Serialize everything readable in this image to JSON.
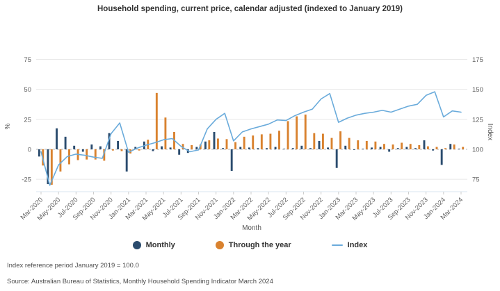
{
  "title": "Household spending, current price, calendar adjusted (indexed to January 2019)",
  "legend": {
    "items": [
      {
        "label": "Monthly",
        "color": "#2b4c6e",
        "marker": "circle"
      },
      {
        "label": "Through the year",
        "color": "#d9822f",
        "marker": "circle"
      },
      {
        "label": "Index",
        "color": "#6aabdb",
        "marker": "line"
      }
    ]
  },
  "footnotes": {
    "reference": "Index reference period January 2019 = 100.0",
    "source": "Source: Australian Bureau of Statistics, Monthly Household Spending Indicator March 2024"
  },
  "chart_data": {
    "type": "bar",
    "title": "Household spending, current price, calendar adjusted (indexed to January 2019)",
    "xlabel": "Month",
    "ylabel_left": "%",
    "ylabel_right": "Index",
    "yticks_left": [
      75,
      50,
      25,
      0,
      -25
    ],
    "yticks_right": [
      175,
      150,
      125,
      100,
      75
    ],
    "ylim_left": [
      -35,
      78
    ],
    "ylim_right": [
      65,
      178
    ],
    "grid": true,
    "zero_line_dashed": true,
    "legend_position": "bottom",
    "tick_every": 2,
    "months": [
      "Mar-2020",
      "Apr-2020",
      "May-2020",
      "Jun-2020",
      "Jul-2020",
      "Aug-2020",
      "Sep-2020",
      "Oct-2020",
      "Nov-2020",
      "Dec-2020",
      "Jan-2021",
      "Feb-2021",
      "Mar-2021",
      "Apr-2021",
      "May-2021",
      "Jun-2021",
      "Jul-2021",
      "Aug-2021",
      "Sep-2021",
      "Oct-2021",
      "Nov-2021",
      "Dec-2021",
      "Jan-2022",
      "Feb-2022",
      "Mar-2022",
      "Apr-2022",
      "May-2022",
      "Jun-2022",
      "Jul-2022",
      "Aug-2022",
      "Sep-2022",
      "Oct-2022",
      "Nov-2022",
      "Dec-2022",
      "Jan-2023",
      "Feb-2023",
      "Mar-2023",
      "Apr-2023",
      "May-2023",
      "Jun-2023",
      "Jul-2023",
      "Aug-2023",
      "Sep-2023",
      "Oct-2023",
      "Nov-2023",
      "Dec-2023",
      "Jan-2024",
      "Feb-2024",
      "Mar-2024"
    ],
    "series": [
      {
        "name": "Monthly",
        "kind": "bar",
        "axis": "left",
        "color": "#2b4c6e",
        "values": [
          -6,
          -29,
          17.5,
          10.5,
          3,
          -2,
          4,
          2.5,
          13.5,
          7,
          -18.5,
          2,
          6.5,
          -1.5,
          2.5,
          1.5,
          -4.5,
          -3,
          2,
          6.5,
          14.5,
          1,
          -18,
          2,
          1.5,
          1,
          1,
          2,
          0.5,
          1,
          3,
          1,
          7,
          1.5,
          -15.5,
          3,
          -0.5,
          0.5,
          1.5,
          2,
          -2,
          1,
          2,
          1,
          7.5,
          -1,
          -13,
          4.5,
          0.5
        ]
      },
      {
        "name": "Through the year",
        "kind": "bar",
        "axis": "left",
        "color": "#d9822f",
        "values": [
          -13.5,
          -29.5,
          -18.5,
          -12.5,
          -9,
          -8.5,
          -8.5,
          -9.5,
          -1,
          -1.5,
          -3.5,
          -1,
          8,
          47,
          26.5,
          14.5,
          4.5,
          3.5,
          4,
          7.5,
          9,
          8.5,
          6,
          10.5,
          11.5,
          12.5,
          13,
          15.5,
          23.5,
          27.5,
          29,
          13.5,
          13,
          9.5,
          15,
          9.5,
          7.5,
          7,
          6.5,
          4.5,
          4,
          5.5,
          4.5,
          3.5,
          2.5,
          2,
          1,
          4,
          2
        ]
      },
      {
        "name": "Index",
        "kind": "line",
        "axis": "right",
        "color": "#6aabdb",
        "values": [
          98,
          70,
          87,
          94,
          96,
          95,
          93.5,
          92.5,
          113,
          122,
          97.5,
          101,
          103.5,
          105.5,
          108,
          109,
          102.5,
          98,
          99.5,
          117,
          125,
          130,
          107,
          114.5,
          117,
          119,
          121,
          124.5,
          124,
          128,
          131,
          133.5,
          142,
          146.5,
          122.5,
          126,
          128.5,
          130,
          131,
          132.5,
          131,
          133.5,
          136,
          137.5,
          145,
          148,
          127,
          132,
          131
        ]
      }
    ]
  }
}
